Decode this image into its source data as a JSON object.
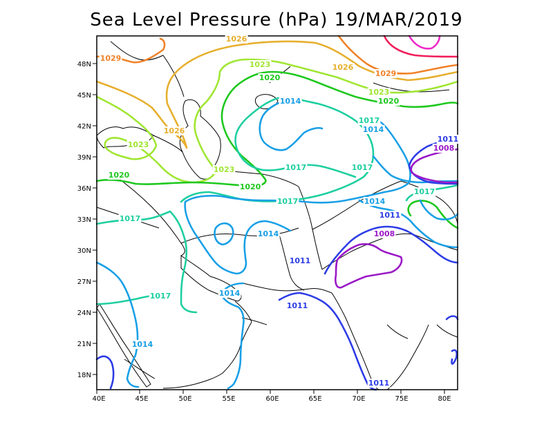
{
  "title": "Sea Level Pressure (hPa) 19/MAR/2019",
  "axes": {
    "x_ticks": [
      "40E",
      "45E",
      "50E",
      "55E",
      "60E",
      "65E",
      "70E",
      "75E",
      "80E"
    ],
    "y_ticks": [
      "48N",
      "45N",
      "42N",
      "39N",
      "36N",
      "33N",
      "30N",
      "27N",
      "24N",
      "21N",
      "18N"
    ]
  },
  "legend_colors": {
    "1008": "#9b19c8",
    "1011": "#2d3ce6",
    "1014": "#19a0e6",
    "1017": "#1ecfa0",
    "1020": "#1ec81e",
    "1023": "#a0e632",
    "1026": "#e6af2d",
    "1029": "#f08228",
    "1032": "#f01e5a",
    "1035": "#f028c8"
  },
  "contour_labels": [
    {
      "text": "1029",
      "value": 1029
    },
    {
      "text": "1026",
      "value": 1026
    },
    {
      "text": "1029",
      "value": 1029
    },
    {
      "text": "1026",
      "value": 1026
    },
    {
      "text": "1023",
      "value": 1023
    },
    {
      "text": "1020",
      "value": 1020
    },
    {
      "text": "1023",
      "value": 1023
    },
    {
      "text": "1014",
      "value": 1014
    },
    {
      "text": "1020",
      "value": 1020
    },
    {
      "text": "1026",
      "value": 1026
    },
    {
      "text": "1023",
      "value": 1023
    },
    {
      "text": "1017",
      "value": 1017
    },
    {
      "text": "1014",
      "value": 1014
    },
    {
      "text": "1011",
      "value": 1011
    },
    {
      "text": "1008",
      "value": 1008
    },
    {
      "text": "1017",
      "value": 1017
    },
    {
      "text": "1017",
      "value": 1017
    },
    {
      "text": "1023",
      "value": 1023
    },
    {
      "text": "1020",
      "value": 1020
    },
    {
      "text": "1020",
      "value": 1020
    },
    {
      "text": "1017",
      "value": 1017
    },
    {
      "text": "1014",
      "value": 1014
    },
    {
      "text": "1011",
      "value": 1011
    },
    {
      "text": "1017",
      "value": 1017
    },
    {
      "text": "1014",
      "value": 1014
    },
    {
      "text": "1017",
      "value": 1017
    },
    {
      "text": "1008",
      "value": 1008
    },
    {
      "text": "1011",
      "value": 1011
    },
    {
      "text": "1014",
      "value": 1014
    },
    {
      "text": "1017",
      "value": 1017
    },
    {
      "text": "1011",
      "value": 1011
    },
    {
      "text": "1014",
      "value": 1014
    },
    {
      "text": "1011",
      "value": 1011
    }
  ]
}
